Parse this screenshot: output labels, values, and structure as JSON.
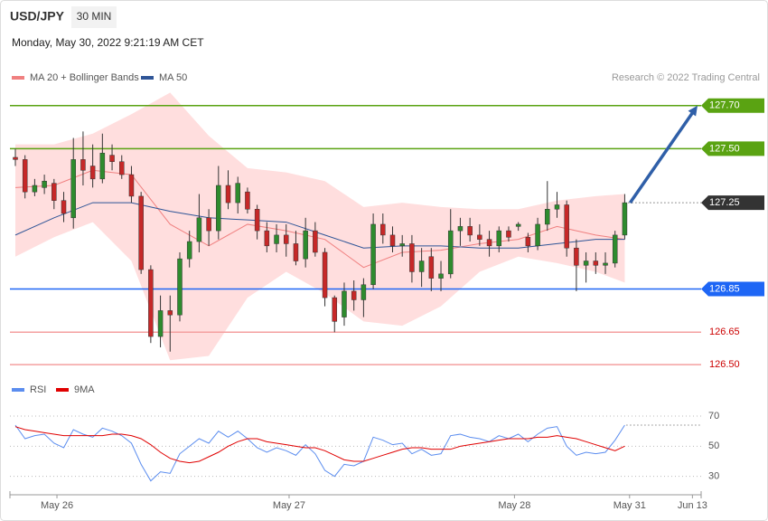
{
  "header": {
    "symbol": "USD/JPY",
    "interval": "30 MIN",
    "timestamp": "Monday, May 30, 2022 9:21:19 AM CET"
  },
  "chart_data": [
    {
      "type": "candlestick",
      "credit": "Research © 2022 Trading Central",
      "xlim": [
        -0.56,
        70.9
      ],
      "ylim": [
        126.45,
        127.77
      ],
      "up_color": "#2e8b2e",
      "down_color": "#c62828",
      "candles": {
        "open": [
          127.46,
          127.45,
          127.3,
          127.32,
          127.34,
          127.26,
          127.18,
          127.45,
          127.42,
          127.36,
          127.47,
          127.44,
          127.38,
          127.28,
          126.94,
          126.63,
          126.75,
          126.73,
          126.99,
          127.07,
          127.18,
          127.12,
          127.33,
          127.25,
          127.3,
          127.22,
          127.12,
          127.06,
          127.1,
          127.06,
          126.99,
          127.12,
          127.02,
          126.81,
          126.72,
          126.84,
          126.8,
          126.87,
          127.15,
          127.1,
          127.05,
          127.06,
          126.93,
          127.0,
          126.9,
          126.92,
          127.12,
          127.14,
          127.1,
          127.08,
          127.05,
          127.12,
          127.14,
          127.09,
          127.05,
          127.15,
          127.22,
          127.24,
          127.04,
          126.96,
          126.98,
          126.96,
          126.97,
          127.1
        ],
        "high": [
          127.5,
          127.47,
          127.36,
          127.38,
          127.36,
          127.3,
          127.55,
          127.58,
          127.52,
          127.57,
          127.52,
          127.47,
          127.42,
          127.3,
          126.96,
          126.82,
          126.82,
          127.02,
          127.12,
          127.29,
          127.22,
          127.42,
          127.4,
          127.37,
          127.32,
          127.24,
          127.16,
          127.15,
          127.15,
          127.12,
          127.18,
          127.16,
          127.04,
          126.82,
          126.88,
          126.89,
          126.9,
          127.2,
          127.2,
          127.14,
          127.1,
          127.1,
          127.04,
          127.04,
          126.98,
          127.22,
          127.18,
          127.18,
          127.15,
          127.12,
          127.14,
          127.14,
          127.16,
          127.11,
          127.18,
          127.35,
          127.3,
          127.26,
          127.08,
          127.02,
          127.02,
          127.02,
          127.12,
          127.29
        ],
        "low": [
          127.42,
          127.27,
          127.28,
          127.29,
          127.22,
          127.16,
          127.13,
          127.33,
          127.32,
          127.34,
          127.4,
          127.36,
          127.25,
          126.92,
          126.6,
          126.58,
          126.56,
          126.7,
          126.95,
          127.02,
          127.05,
          127.08,
          127.22,
          127.2,
          127.2,
          127.08,
          127.02,
          127.02,
          127.0,
          126.96,
          126.95,
          127.0,
          126.77,
          126.65,
          126.68,
          126.75,
          126.72,
          126.85,
          127.06,
          127.02,
          127.0,
          126.88,
          126.86,
          126.84,
          126.84,
          126.9,
          127.05,
          127.07,
          127.05,
          127.0,
          127.02,
          127.07,
          127.12,
          127.02,
          127.03,
          127.12,
          127.18,
          127.0,
          126.84,
          126.88,
          126.92,
          126.92,
          126.95,
          127.08
        ],
        "close": [
          127.45,
          127.3,
          127.33,
          127.35,
          127.26,
          127.2,
          127.45,
          127.4,
          127.36,
          127.48,
          127.44,
          127.38,
          127.28,
          126.94,
          126.63,
          126.75,
          126.73,
          126.99,
          127.07,
          127.18,
          127.12,
          127.33,
          127.25,
          127.34,
          127.22,
          127.12,
          127.05,
          127.1,
          127.06,
          126.98,
          127.12,
          127.02,
          126.81,
          126.7,
          126.84,
          126.8,
          126.87,
          127.15,
          127.1,
          127.05,
          127.06,
          126.93,
          126.98,
          126.9,
          126.92,
          127.12,
          127.14,
          127.1,
          127.08,
          127.05,
          127.12,
          127.09,
          127.15,
          127.05,
          127.15,
          127.22,
          127.24,
          127.04,
          126.96,
          126.98,
          126.96,
          126.97,
          127.1,
          127.25
        ]
      },
      "series": [
        {
          "name": "MA 20 + Bollinger Bands",
          "color": "#f08080",
          "band_color": "#ffdede",
          "x": [
            0,
            4,
            8,
            12,
            16,
            20,
            24,
            28,
            32,
            36,
            40,
            44,
            48,
            52,
            56,
            60,
            63
          ],
          "values": [
            127.32,
            127.33,
            127.4,
            127.38,
            127.15,
            127.05,
            127.15,
            127.12,
            127.08,
            126.95,
            127.02,
            127.03,
            127.06,
            127.08,
            127.14,
            127.1,
            127.08
          ],
          "upper": [
            127.52,
            127.52,
            127.57,
            127.66,
            127.76,
            127.56,
            127.41,
            127.39,
            127.35,
            127.23,
            127.25,
            127.23,
            127.22,
            127.22,
            127.26,
            127.28,
            127.29
          ],
          "lower": [
            127.0,
            127.09,
            127.16,
            126.98,
            126.52,
            126.54,
            126.81,
            126.93,
            126.83,
            126.7,
            126.68,
            126.77,
            126.93,
            127.0,
            126.97,
            126.93,
            126.88
          ]
        },
        {
          "name": "MA 50",
          "color": "#2f5597",
          "x": [
            0,
            4,
            8,
            12,
            16,
            20,
            24,
            28,
            32,
            36,
            40,
            44,
            48,
            52,
            56,
            60,
            63
          ],
          "values": [
            127.1,
            127.18,
            127.25,
            127.25,
            127.21,
            127.18,
            127.17,
            127.16,
            127.1,
            127.04,
            127.05,
            127.05,
            127.04,
            127.04,
            127.06,
            127.08,
            127.08
          ]
        }
      ],
      "levels": [
        {
          "value": 127.7,
          "label": "127.70",
          "color": "#5aa312",
          "style": "tag"
        },
        {
          "value": 127.5,
          "label": "127.50",
          "color": "#5aa312",
          "style": "tag"
        },
        {
          "value": 127.25,
          "label": "127.25",
          "color": "#333333",
          "style": "tag",
          "dashed": true
        },
        {
          "value": 126.85,
          "label": "126.85",
          "color": "#1e66f5",
          "style": "tag"
        },
        {
          "value": 126.65,
          "label": "126.65",
          "color": "#f4a0a0",
          "style": "text"
        },
        {
          "value": 126.5,
          "label": "126.50",
          "color": "#f4a0a0",
          "style": "text"
        }
      ]
    },
    {
      "type": "line",
      "xlim": [
        -0.56,
        70.9
      ],
      "ylim": [
        22,
        76
      ],
      "yticks": [
        30,
        50,
        70
      ],
      "xticks": [
        {
          "value": 4.3,
          "label": "May 26"
        },
        {
          "value": 28.3,
          "label": "May 27"
        },
        {
          "value": 51.6,
          "label": "May 28"
        },
        {
          "value": 63.5,
          "label": "May 31"
        },
        {
          "value": 70.0,
          "label": "Jun 13"
        }
      ],
      "series": [
        {
          "name": "RSI",
          "color": "#5b8def",
          "values": [
            64,
            55,
            57,
            58,
            52,
            49,
            61,
            58,
            56,
            62,
            60,
            57,
            52,
            38,
            27,
            33,
            32,
            45,
            50,
            55,
            52,
            60,
            56,
            60,
            55,
            49,
            46,
            49,
            47,
            44,
            51,
            45,
            34,
            30,
            38,
            37,
            40,
            56,
            54,
            51,
            52,
            45,
            48,
            44,
            45,
            57,
            58,
            56,
            55,
            53,
            57,
            55,
            58,
            53,
            58,
            62,
            63,
            50,
            44,
            46,
            45,
            46,
            54,
            64
          ]
        },
        {
          "name": "9MA",
          "color": "#e00000",
          "values": [
            63,
            61,
            60,
            59,
            58,
            57,
            57,
            57,
            57,
            57,
            58,
            58,
            57,
            55,
            51,
            46,
            42,
            40,
            39,
            40,
            43,
            46,
            50,
            53,
            55,
            55,
            53,
            52,
            51,
            50,
            49,
            49,
            47,
            44,
            41,
            40,
            40,
            42,
            44,
            46,
            48,
            49,
            49,
            48,
            48,
            48,
            50,
            51,
            52,
            53,
            54,
            55,
            55,
            55,
            56,
            56,
            57,
            56,
            55,
            53,
            51,
            49,
            47,
            50
          ]
        }
      ]
    }
  ]
}
